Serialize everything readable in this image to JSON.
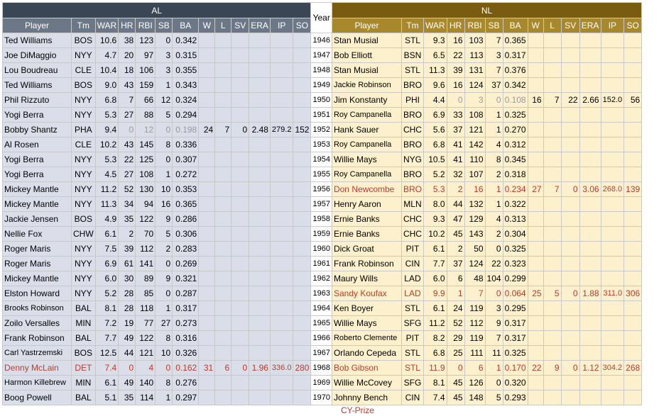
{
  "headers": {
    "al": "AL",
    "nl": "NL",
    "year": "Year",
    "columns": [
      "Player",
      "Tm",
      "WAR",
      "HR",
      "RBI",
      "SB",
      "BA",
      "W",
      "L",
      "SV",
      "ERA",
      "IP",
      "SO"
    ]
  },
  "rows": [
    {
      "year": "1946",
      "al": {
        "player": "Ted Williams",
        "tm": "BOS",
        "war": "10.6",
        "hr": "38",
        "rbi": "123",
        "sb": "0",
        "ba": "0.342"
      },
      "nl": {
        "player": "Stan Musial",
        "tm": "STL",
        "war": "9.3",
        "hr": "16",
        "rbi": "103",
        "sb": "7",
        "ba": "0.365"
      }
    },
    {
      "year": "1947",
      "al": {
        "player": "Joe DiMaggio",
        "tm": "NYY",
        "war": "4.7",
        "hr": "20",
        "rbi": "97",
        "sb": "3",
        "ba": "0.315"
      },
      "nl": {
        "player": "Bob Elliott",
        "tm": "BSN",
        "war": "6.5",
        "hr": "22",
        "rbi": "113",
        "sb": "3",
        "ba": "0.317"
      }
    },
    {
      "year": "1948",
      "al": {
        "player": "Lou Boudreau",
        "tm": "CLE",
        "war": "10.4",
        "hr": "18",
        "rbi": "106",
        "sb": "3",
        "ba": "0.355"
      },
      "nl": {
        "player": "Stan Musial",
        "tm": "STL",
        "war": "11.3",
        "hr": "39",
        "rbi": "131",
        "sb": "7",
        "ba": "0.376"
      }
    },
    {
      "year": "1949",
      "al": {
        "player": "Ted Williams",
        "tm": "BOS",
        "war": "9.0",
        "hr": "43",
        "rbi": "159",
        "sb": "1",
        "ba": "0.343"
      },
      "nl": {
        "player": "Jackie Robinson",
        "tm": "BRO",
        "war": "9.6",
        "hr": "16",
        "rbi": "124",
        "sb": "37",
        "ba": "0.342",
        "small": true
      }
    },
    {
      "year": "1950",
      "al": {
        "player": "Phil Rizzuto",
        "tm": "NYY",
        "war": "6.8",
        "hr": "7",
        "rbi": "66",
        "sb": "12",
        "ba": "0.324"
      },
      "nl": {
        "player": "Jim Konstanty",
        "tm": "PHI",
        "war": "4.4",
        "hr": "0",
        "rbi": "3",
        "sb": "0",
        "ba": "0.108",
        "w": "16",
        "l": "7",
        "sv": "22",
        "era": "2.66",
        "ip": "152.0",
        "so": "56",
        "pitcher": true
      }
    },
    {
      "year": "1951",
      "al": {
        "player": "Yogi Berra",
        "tm": "NYY",
        "war": "5.3",
        "hr": "27",
        "rbi": "88",
        "sb": "5",
        "ba": "0.294"
      },
      "nl": {
        "player": "Roy Campanella",
        "tm": "BRO",
        "war": "6.9",
        "hr": "33",
        "rbi": "108",
        "sb": "1",
        "ba": "0.325",
        "small": true
      }
    },
    {
      "year": "1952",
      "al": {
        "player": "Bobby Shantz",
        "tm": "PHA",
        "war": "9.4",
        "hr": "0",
        "rbi": "12",
        "sb": "0",
        "ba": "0.198",
        "w": "24",
        "l": "7",
        "sv": "0",
        "era": "2.48",
        "ip": "279.2",
        "so": "152",
        "pitcher": true
      },
      "nl": {
        "player": "Hank Sauer",
        "tm": "CHC",
        "war": "5.6",
        "hr": "37",
        "rbi": "121",
        "sb": "1",
        "ba": "0.270"
      }
    },
    {
      "year": "1953",
      "al": {
        "player": "Al Rosen",
        "tm": "CLE",
        "war": "10.2",
        "hr": "43",
        "rbi": "145",
        "sb": "8",
        "ba": "0.336"
      },
      "nl": {
        "player": "Roy Campanella",
        "tm": "BRO",
        "war": "6.8",
        "hr": "41",
        "rbi": "142",
        "sb": "4",
        "ba": "0.312",
        "small": true
      }
    },
    {
      "year": "1954",
      "al": {
        "player": "Yogi Berra",
        "tm": "NYY",
        "war": "5.3",
        "hr": "22",
        "rbi": "125",
        "sb": "0",
        "ba": "0.307"
      },
      "nl": {
        "player": "Willie Mays",
        "tm": "NYG",
        "war": "10.5",
        "hr": "41",
        "rbi": "110",
        "sb": "8",
        "ba": "0.345"
      }
    },
    {
      "year": "1955",
      "al": {
        "player": "Yogi Berra",
        "tm": "NYY",
        "war": "4.5",
        "hr": "27",
        "rbi": "108",
        "sb": "1",
        "ba": "0.272"
      },
      "nl": {
        "player": "Roy Campanella",
        "tm": "BRO",
        "war": "5.2",
        "hr": "32",
        "rbi": "107",
        "sb": "2",
        "ba": "0.318",
        "small": true
      }
    },
    {
      "year": "1956",
      "sep": true,
      "al": {
        "player": "Mickey Mantle",
        "tm": "NYY",
        "war": "11.2",
        "hr": "52",
        "rbi": "130",
        "sb": "10",
        "ba": "0.353"
      },
      "nl": {
        "player": "Don Newcombe",
        "tm": "BRO",
        "war": "5.3",
        "hr": "2",
        "rbi": "16",
        "sb": "1",
        "ba": "0.234",
        "w": "27",
        "l": "7",
        "sv": "0",
        "era": "3.06",
        "ip": "268.0",
        "so": "139",
        "red": true
      }
    },
    {
      "year": "1957",
      "al": {
        "player": "Mickey Mantle",
        "tm": "NYY",
        "war": "11.3",
        "hr": "34",
        "rbi": "94",
        "sb": "16",
        "ba": "0.365"
      },
      "nl": {
        "player": "Henry Aaron",
        "tm": "MLN",
        "war": "8.0",
        "hr": "44",
        "rbi": "132",
        "sb": "1",
        "ba": "0.322"
      }
    },
    {
      "year": "1958",
      "al": {
        "player": "Jackie Jensen",
        "tm": "BOS",
        "war": "4.9",
        "hr": "35",
        "rbi": "122",
        "sb": "9",
        "ba": "0.286"
      },
      "nl": {
        "player": "Ernie Banks",
        "tm": "CHC",
        "war": "9.3",
        "hr": "47",
        "rbi": "129",
        "sb": "4",
        "ba": "0.313"
      }
    },
    {
      "year": "1959",
      "al": {
        "player": "Nellie Fox",
        "tm": "CHW",
        "war": "6.1",
        "hr": "2",
        "rbi": "70",
        "sb": "5",
        "ba": "0.306"
      },
      "nl": {
        "player": "Ernie Banks",
        "tm": "CHC",
        "war": "10.2",
        "hr": "45",
        "rbi": "143",
        "sb": "2",
        "ba": "0.304"
      }
    },
    {
      "year": "1960",
      "al": {
        "player": "Roger Maris",
        "tm": "NYY",
        "war": "7.5",
        "hr": "39",
        "rbi": "112",
        "sb": "2",
        "ba": "0.283"
      },
      "nl": {
        "player": "Dick Groat",
        "tm": "PIT",
        "war": "6.1",
        "hr": "2",
        "rbi": "50",
        "sb": "0",
        "ba": "0.325"
      }
    },
    {
      "year": "1961",
      "al": {
        "player": "Roger Maris",
        "tm": "NYY",
        "war": "6.9",
        "hr": "61",
        "rbi": "141",
        "sb": "0",
        "ba": "0.269"
      },
      "nl": {
        "player": "Frank Robinson",
        "tm": "CIN",
        "war": "7.7",
        "hr": "37",
        "rbi": "124",
        "sb": "22",
        "ba": "0.323"
      }
    },
    {
      "year": "1962",
      "al": {
        "player": "Mickey Mantle",
        "tm": "NYY",
        "war": "6.0",
        "hr": "30",
        "rbi": "89",
        "sb": "9",
        "ba": "0.321"
      },
      "nl": {
        "player": "Maury Wills",
        "tm": "LAD",
        "war": "6.0",
        "hr": "6",
        "rbi": "48",
        "sb": "104",
        "ba": "0.299"
      }
    },
    {
      "year": "1963",
      "al": {
        "player": "Elston Howard",
        "tm": "NYY",
        "war": "5.2",
        "hr": "28",
        "rbi": "85",
        "sb": "0",
        "ba": "0.287"
      },
      "nl": {
        "player": "Sandy Koufax",
        "tm": "LAD",
        "war": "9.9",
        "hr": "1",
        "rbi": "7",
        "sb": "0",
        "ba": "0.064",
        "w": "25",
        "l": "5",
        "sv": "0",
        "era": "1.88",
        "ip": "311.0",
        "so": "306",
        "red": true
      }
    },
    {
      "year": "1964",
      "al": {
        "player": "Brooks Robinson",
        "tm": "BAL",
        "war": "8.1",
        "hr": "28",
        "rbi": "118",
        "sb": "1",
        "ba": "0.317",
        "small": true
      },
      "nl": {
        "player": "Ken Boyer",
        "tm": "STL",
        "war": "6.1",
        "hr": "24",
        "rbi": "119",
        "sb": "3",
        "ba": "0.295"
      }
    },
    {
      "year": "1965",
      "al": {
        "player": "Zoilo Versalles",
        "tm": "MIN",
        "war": "7.2",
        "hr": "19",
        "rbi": "77",
        "sb": "27",
        "ba": "0.273"
      },
      "nl": {
        "player": "Willie Mays",
        "tm": "SFG",
        "war": "11.2",
        "hr": "52",
        "rbi": "112",
        "sb": "9",
        "ba": "0.317"
      }
    },
    {
      "year": "1966",
      "al": {
        "player": "Frank Robinson",
        "tm": "BAL",
        "war": "7.7",
        "hr": "49",
        "rbi": "122",
        "sb": "8",
        "ba": "0.316"
      },
      "nl": {
        "player": "Roberto Clemente",
        "tm": "PIT",
        "war": "8.2",
        "hr": "29",
        "rbi": "119",
        "sb": "7",
        "ba": "0.317",
        "small": true
      }
    },
    {
      "year": "1967",
      "al": {
        "player": "Carl Yastrzemski",
        "tm": "BOS",
        "war": "12.5",
        "hr": "44",
        "rbi": "121",
        "sb": "10",
        "ba": "0.326",
        "small": true
      },
      "nl": {
        "player": "Orlando Cepeda",
        "tm": "STL",
        "war": "6.8",
        "hr": "25",
        "rbi": "111",
        "sb": "11",
        "ba": "0.325"
      }
    },
    {
      "year": "1968",
      "al": {
        "player": "Denny McLain",
        "tm": "DET",
        "war": "7.4",
        "hr": "0",
        "rbi": "4",
        "sb": "0",
        "ba": "0.162",
        "w": "31",
        "l": "6",
        "sv": "0",
        "era": "1.96",
        "ip": "336.0",
        "so": "280",
        "red": true
      },
      "nl": {
        "player": "Bob Gibson",
        "tm": "STL",
        "war": "11.9",
        "hr": "0",
        "rbi": "6",
        "sb": "1",
        "ba": "0.170",
        "w": "22",
        "l": "9",
        "sv": "0",
        "era": "1.12",
        "ip": "304.2",
        "so": "268",
        "red": true
      }
    },
    {
      "year": "1969",
      "al": {
        "player": "Harmon Killebrew",
        "tm": "MIN",
        "war": "6.1",
        "hr": "49",
        "rbi": "140",
        "sb": "8",
        "ba": "0.276",
        "small": true
      },
      "nl": {
        "player": "Willie McCovey",
        "tm": "SFG",
        "war": "8.1",
        "hr": "45",
        "rbi": "126",
        "sb": "0",
        "ba": "0.320"
      }
    },
    {
      "year": "1970",
      "al": {
        "player": "Boog Powell",
        "tm": "BAL",
        "war": "5.1",
        "hr": "35",
        "rbi": "114",
        "sb": "1",
        "ba": "0.297"
      },
      "nl": {
        "player": "Johnny Bench",
        "tm": "CIN",
        "war": "7.4",
        "hr": "45",
        "rbi": "148",
        "sb": "5",
        "ba": "0.293"
      }
    }
  ],
  "footnote": "CY-Prize",
  "colors": {
    "al_bg": "#d9dee9",
    "nl_bg": "#fdf0cc",
    "al_header": "#3b4654",
    "nl_header": "#7a5c10",
    "award_red": "#c0392b"
  }
}
